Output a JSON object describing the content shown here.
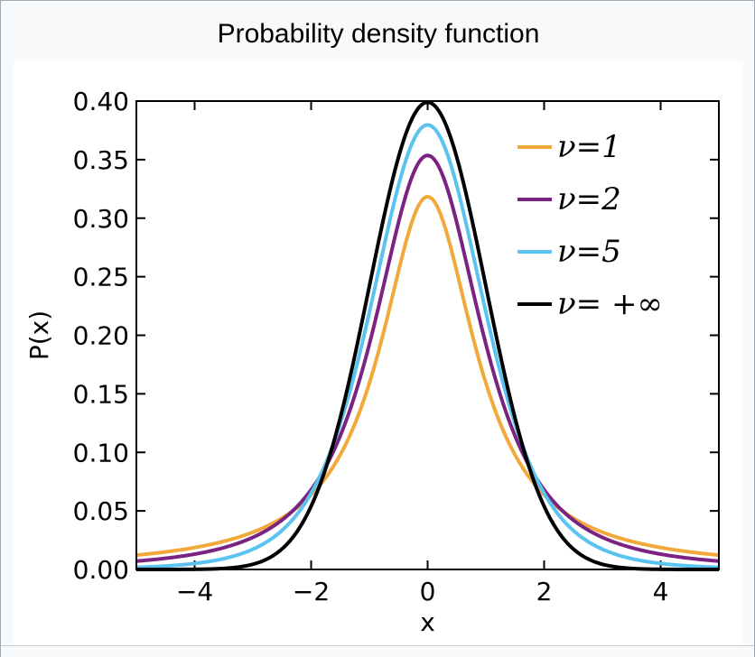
{
  "caption": "Probability density function",
  "chart_data": {
    "type": "line",
    "title": "",
    "xlabel": "x",
    "ylabel": "P(x)",
    "xlim": [
      -5,
      5
    ],
    "ylim": [
      0,
      0.4
    ],
    "x_ticks": [
      -4,
      -2,
      0,
      2,
      4
    ],
    "x_tick_labels": [
      "−4",
      "−2",
      "0",
      "2",
      "4"
    ],
    "y_ticks": [
      0,
      0.05,
      0.1,
      0.15,
      0.2,
      0.25,
      0.3,
      0.35,
      0.4
    ],
    "y_tick_labels": [
      "0.00",
      "0.05",
      "0.10",
      "0.15",
      "0.20",
      "0.25",
      "0.30",
      "0.35",
      "0.40"
    ],
    "grid": false,
    "legend_placement": "top-right",
    "series": [
      {
        "name": "ν=1",
        "dof": 1,
        "color": "#F2A93B",
        "x": [
          -5,
          -4,
          -3,
          -2,
          -1.5,
          -1,
          -0.5,
          0,
          0.5,
          1,
          1.5,
          2,
          3,
          4,
          5
        ],
        "values": [
          0.0122,
          0.0187,
          0.0318,
          0.0637,
          0.0979,
          0.1592,
          0.2546,
          0.3183,
          0.2546,
          0.1592,
          0.0979,
          0.0637,
          0.0318,
          0.0187,
          0.0122
        ]
      },
      {
        "name": "ν=2",
        "dof": 2,
        "color": "#7B2382",
        "x": [
          -5,
          -4,
          -3,
          -2,
          -1.5,
          -1,
          -0.5,
          0,
          0.5,
          1,
          1.5,
          2,
          3,
          4,
          5
        ],
        "values": [
          0.0071,
          0.0131,
          0.0274,
          0.068,
          0.1097,
          0.1925,
          0.3018,
          0.3536,
          0.3018,
          0.1925,
          0.1097,
          0.068,
          0.0274,
          0.0131,
          0.0071
        ]
      },
      {
        "name": "ν=5",
        "dof": 5,
        "color": "#5AC3F0",
        "x": [
          -5,
          -4,
          -3,
          -2,
          -1.5,
          -1,
          -0.5,
          0,
          0.5,
          1,
          1.5,
          2,
          3,
          4,
          5
        ],
        "values": [
          0.0018,
          0.0051,
          0.0173,
          0.0651,
          0.1245,
          0.2197,
          0.3279,
          0.3796,
          0.3279,
          0.2197,
          0.1245,
          0.0651,
          0.0173,
          0.0051,
          0.0018
        ]
      },
      {
        "name": "ν= +∞",
        "dof": "inf",
        "color": "#000000",
        "x": [
          -5,
          -4,
          -3,
          -2,
          -1.5,
          -1,
          -0.5,
          0,
          0.5,
          1,
          1.5,
          2,
          3,
          4,
          5
        ],
        "values": [
          1.5e-06,
          0.0001,
          0.0044,
          0.054,
          0.1295,
          0.242,
          0.3521,
          0.3989,
          0.3521,
          0.242,
          0.1295,
          0.054,
          0.0044,
          0.0001,
          1.5e-06
        ]
      }
    ]
  }
}
